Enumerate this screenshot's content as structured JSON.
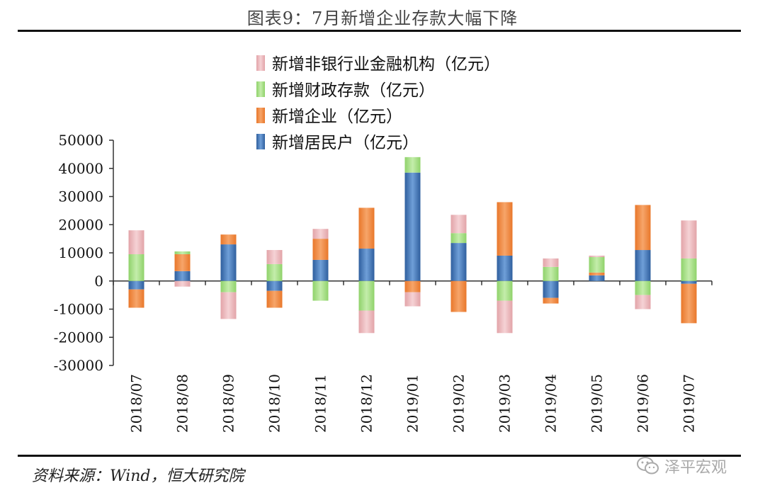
{
  "figure": {
    "title": "图表9：7月新增企业存款大幅下降",
    "source": "资料来源：Wind，恒大研究院",
    "watermark": "泽平宏观"
  },
  "chart_data": {
    "type": "bar",
    "stacked": true,
    "title": "",
    "xlabel": "",
    "ylabel": "",
    "ylim": [
      -30000,
      50000
    ],
    "yticks": [
      50000,
      40000,
      30000,
      20000,
      10000,
      0,
      -10000,
      -20000,
      -30000
    ],
    "categories": [
      "2018/07",
      "2018/08",
      "2018/09",
      "2018/10",
      "2018/11",
      "2018/12",
      "2019/01",
      "2019/02",
      "2019/03",
      "2019/04",
      "2019/05",
      "2019/06",
      "2019/07"
    ],
    "series": [
      {
        "name": "新增居民户（亿元）",
        "color": "#3f74b8",
        "values": [
          -3000,
          3500,
          13000,
          -3500,
          7500,
          11500,
          38500,
          13500,
          9000,
          -6000,
          2000,
          11000,
          -1000
        ]
      },
      {
        "name": "新增企业（亿元）",
        "color": "#f28a3a",
        "values": [
          -6500,
          6000,
          3500,
          -6000,
          7500,
          14500,
          -4000,
          -11000,
          19000,
          -2000,
          1000,
          16000,
          -14000
        ]
      },
      {
        "name": "新增财政存款（亿元）",
        "color": "#9fdc7e",
        "values": [
          9500,
          1000,
          -4000,
          6000,
          -7000,
          -10500,
          5500,
          3500,
          -7000,
          5000,
          5500,
          -5000,
          8000
        ]
      },
      {
        "name": "新增非银行业金融机构（亿元）",
        "color": "#e9b5b9",
        "values": [
          8500,
          -2000,
          -9500,
          5000,
          3500,
          -8000,
          -5000,
          6500,
          -11500,
          3000,
          500,
          -5000,
          13500
        ]
      }
    ],
    "legend_order": [
      3,
      2,
      1,
      0
    ],
    "legend_position": "top-left",
    "grid": false
  }
}
